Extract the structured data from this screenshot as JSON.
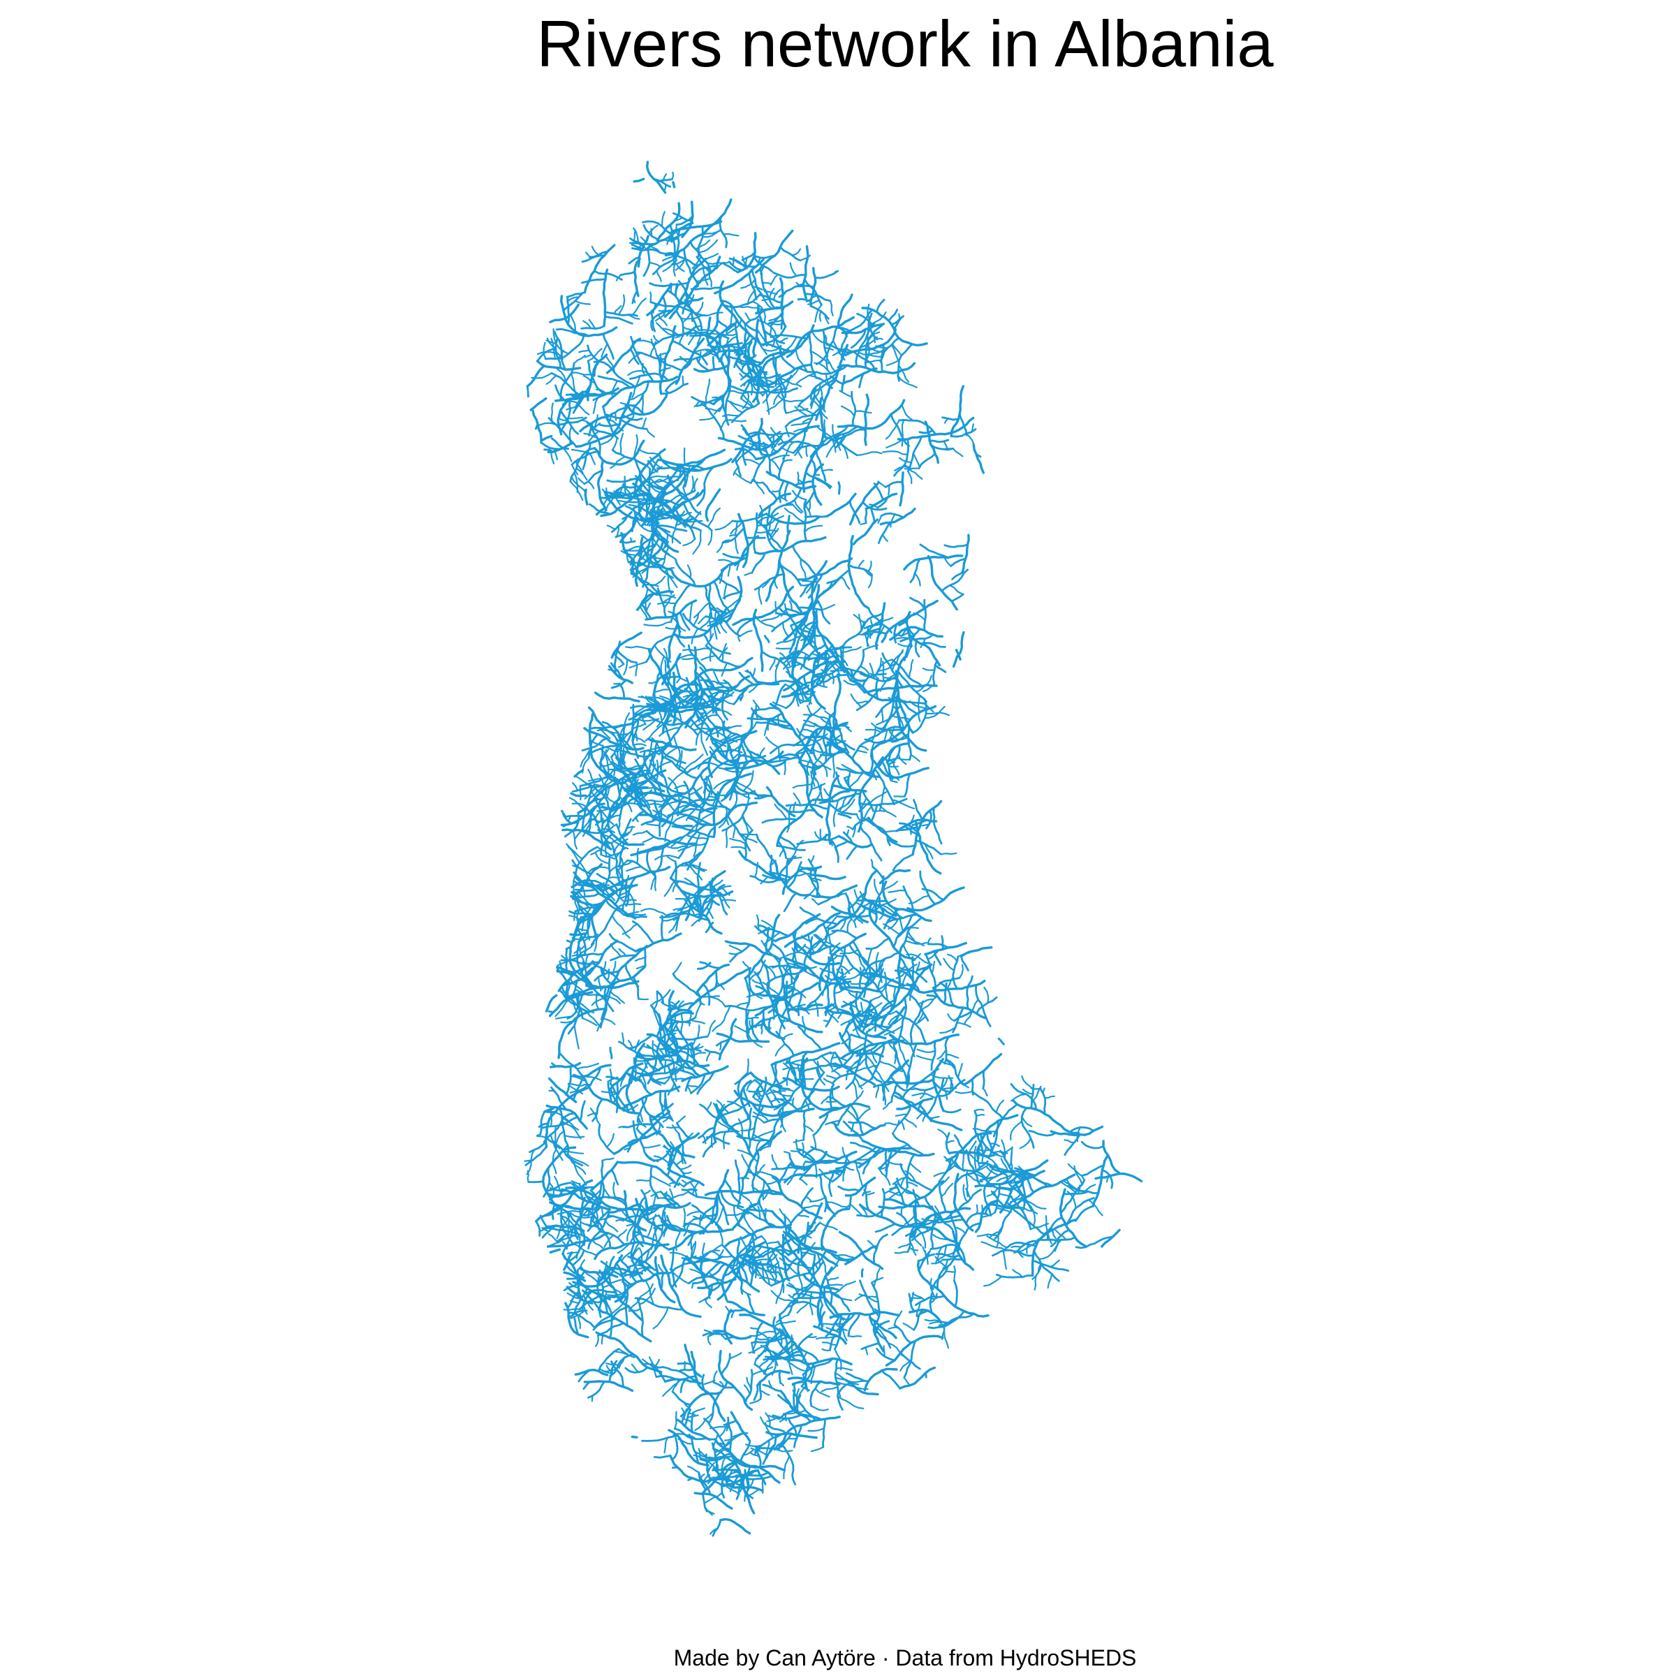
{
  "map": {
    "title": "Rivers network in Albania",
    "caption": "Made by Can Aytöre · Data from HydroSHEDS",
    "layer": {
      "name": "Rivers",
      "feature": "river network",
      "region": "Albania",
      "color": "#1a9ad6"
    },
    "background_color": "#ffffff",
    "basemap": "none"
  }
}
